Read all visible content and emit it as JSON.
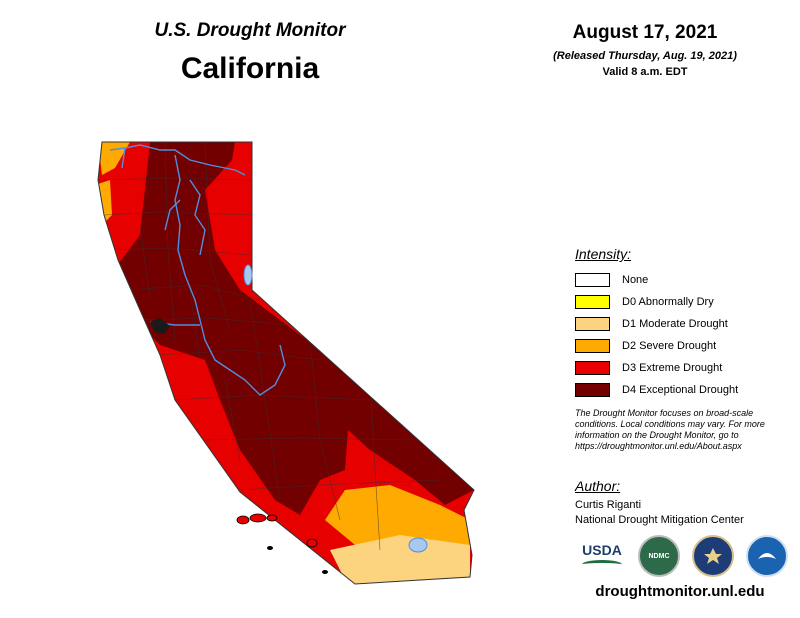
{
  "header": {
    "monitor_title": "U.S. Drought Monitor",
    "state": "California",
    "date": "August 17, 2021",
    "released": "(Released Thursday, Aug. 19, 2021)",
    "valid": "Valid 8 a.m. EDT"
  },
  "legend": {
    "title": "Intensity:",
    "items": [
      {
        "label": "None",
        "color": "#ffffff"
      },
      {
        "label": "D0 Abnormally Dry",
        "color": "#ffff00"
      },
      {
        "label": "D1 Moderate Drought",
        "color": "#fcd37f"
      },
      {
        "label": "D2 Severe Drought",
        "color": "#ffaa00"
      },
      {
        "label": "D3 Extreme Drought",
        "color": "#e60000"
      },
      {
        "label": "D4 Exceptional Drought",
        "color": "#730000"
      }
    ]
  },
  "note": "The Drought Monitor focuses on broad-scale conditions. Local conditions may vary. For more information on the Drought Monitor, go to https://droughtmonitor.unl.edu/About.aspx",
  "author": {
    "heading": "Author:",
    "name": "Curtis Riganti",
    "org": "National Drought Mitigation Center"
  },
  "logos": [
    {
      "icon": "usda-logo",
      "text": "USDA"
    },
    {
      "icon": "ndmc-seal",
      "text": "NDMC"
    },
    {
      "icon": "commerce-seal",
      "text": ""
    },
    {
      "icon": "noaa-seal",
      "text": ""
    }
  ],
  "site_url": "droughtmonitor.unl.edu",
  "colors": {
    "water": "#4f8fe0",
    "county_line": "#333333"
  }
}
